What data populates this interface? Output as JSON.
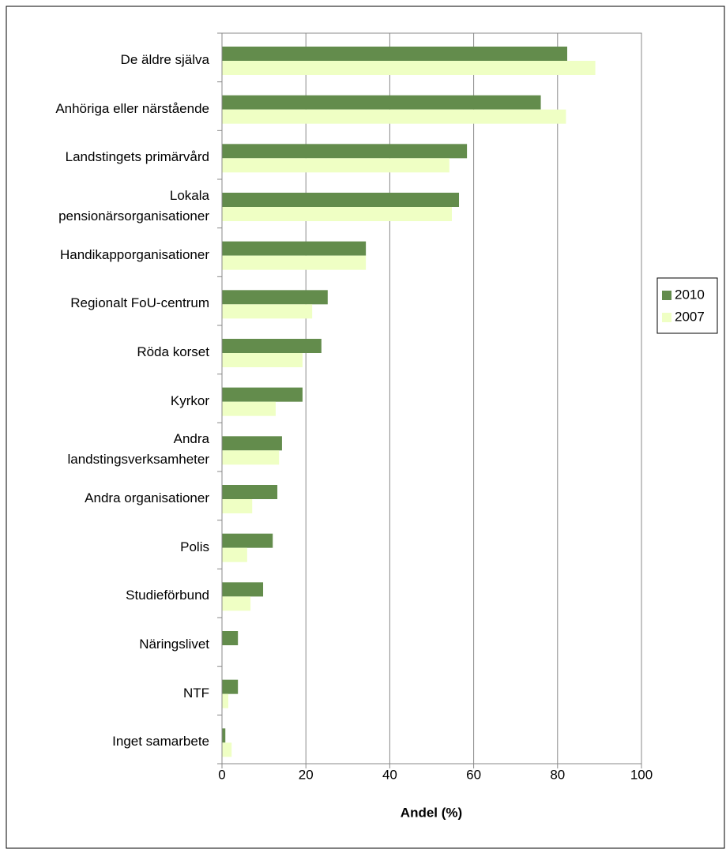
{
  "chart_data": {
    "type": "barh",
    "xlabel": "Andel (%)",
    "categories": [
      "De äldre själva",
      "Anhöriga eller närstående",
      "Landstingets primärvård",
      "Lokala\npensionärsorganisationer",
      "Handikapporganisationer",
      "Regionalt FoU-centrum",
      "Röda korset",
      "Kyrkor",
      "Andra\nlandstingsverksamheter",
      "Andra organisationer",
      "Polis",
      "Studieförbund",
      "Näringslivet",
      "NTF",
      "Inget samarbete"
    ],
    "series": [
      {
        "name": "2010",
        "color": "#638c4c",
        "values": [
          82.3,
          76,
          58.4,
          56.5,
          34.3,
          25.2,
          23.7,
          19.2,
          14.3,
          13.2,
          12.1,
          9.8,
          3.8,
          3.8,
          0.8
        ]
      },
      {
        "name": "2007",
        "color": "#efffc4",
        "values": [
          89,
          82,
          54.2,
          54.8,
          34.3,
          21.5,
          19.2,
          12.8,
          13.6,
          7.2,
          6,
          6.8,
          0,
          1.5,
          2.3
        ]
      }
    ],
    "xlim": [
      0,
      100
    ],
    "xticks": [
      0,
      20,
      40,
      60,
      80,
      100
    ],
    "grid": true,
    "legend": "right"
  }
}
